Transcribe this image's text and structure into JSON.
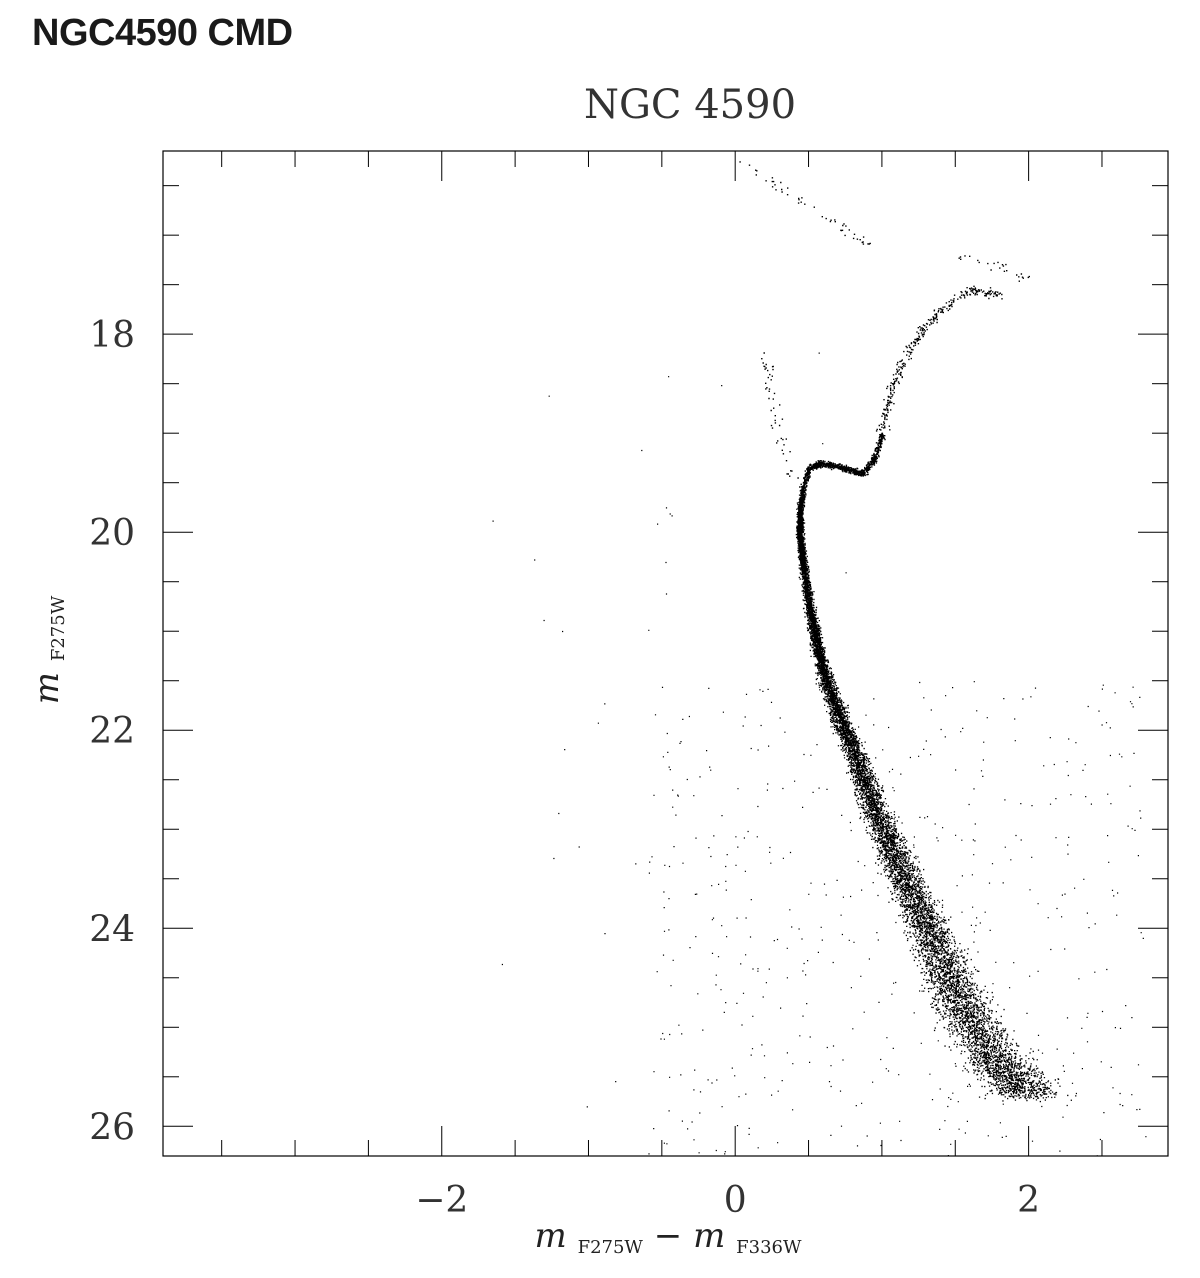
{
  "page": {
    "title": "NGC4590 CMD"
  },
  "chart_data": {
    "type": "scatter",
    "title": "NGC 4590",
    "xlabel": {
      "main": "m",
      "sub1": "F275W",
      "dash": "−",
      "main2": "m",
      "sub2": "F336W"
    },
    "ylabel": {
      "main": "m",
      "sub": "F275W"
    },
    "xlim": [
      -3.9,
      2.95
    ],
    "ylim": [
      26.3,
      16.15
    ],
    "y_inverted": true,
    "x_ticks_major": [
      -2,
      0,
      2
    ],
    "x_tick_labels": [
      "−2",
      "0",
      "2"
    ],
    "x_ticks_minor_step": 0.5,
    "y_ticks_major": [
      18,
      20,
      22,
      24,
      26
    ],
    "y_tick_labels": [
      "18",
      "20",
      "22",
      "24",
      "26"
    ],
    "y_ticks_minor_step": 0.5,
    "grid": false,
    "legend": "none",
    "point_color": "#000000",
    "sequences": {
      "main_sequence": [
        [
          0.46,
          19.55
        ],
        [
          0.44,
          19.8
        ],
        [
          0.44,
          20.0
        ],
        [
          0.46,
          20.3
        ],
        [
          0.5,
          20.7
        ],
        [
          0.55,
          21.1
        ],
        [
          0.62,
          21.5
        ],
        [
          0.72,
          21.9
        ],
        [
          0.83,
          22.3
        ],
        [
          0.95,
          22.8
        ],
        [
          1.1,
          23.3
        ],
        [
          1.25,
          23.8
        ],
        [
          1.4,
          24.3
        ],
        [
          1.55,
          24.8
        ],
        [
          1.75,
          25.3
        ],
        [
          2.0,
          25.7
        ]
      ],
      "subgiant_branch": [
        [
          0.46,
          19.55
        ],
        [
          0.5,
          19.35
        ],
        [
          0.58,
          19.3
        ],
        [
          0.7,
          19.33
        ],
        [
          0.8,
          19.38
        ],
        [
          0.87,
          19.4
        ],
        [
          0.95,
          19.25
        ],
        [
          1.0,
          19.0
        ]
      ],
      "red_giant_branch": [
        [
          1.0,
          19.0
        ],
        [
          1.05,
          18.6
        ],
        [
          1.13,
          18.3
        ],
        [
          1.25,
          18.0
        ],
        [
          1.4,
          17.75
        ],
        [
          1.6,
          17.55
        ],
        [
          1.8,
          17.6
        ]
      ],
      "blue_stragglers": [
        [
          0.2,
          18.2
        ],
        [
          0.25,
          18.6
        ],
        [
          0.3,
          19.0
        ],
        [
          0.38,
          19.4
        ]
      ],
      "agb": [
        [
          0.0,
          16.2
        ],
        [
          0.3,
          16.5
        ],
        [
          0.6,
          16.8
        ],
        [
          0.8,
          17.0
        ],
        [
          0.9,
          17.1
        ]
      ],
      "hb": [
        [
          1.5,
          17.2
        ],
        [
          1.8,
          17.3
        ],
        [
          2.0,
          17.45
        ]
      ]
    },
    "n_points": 16000
  }
}
